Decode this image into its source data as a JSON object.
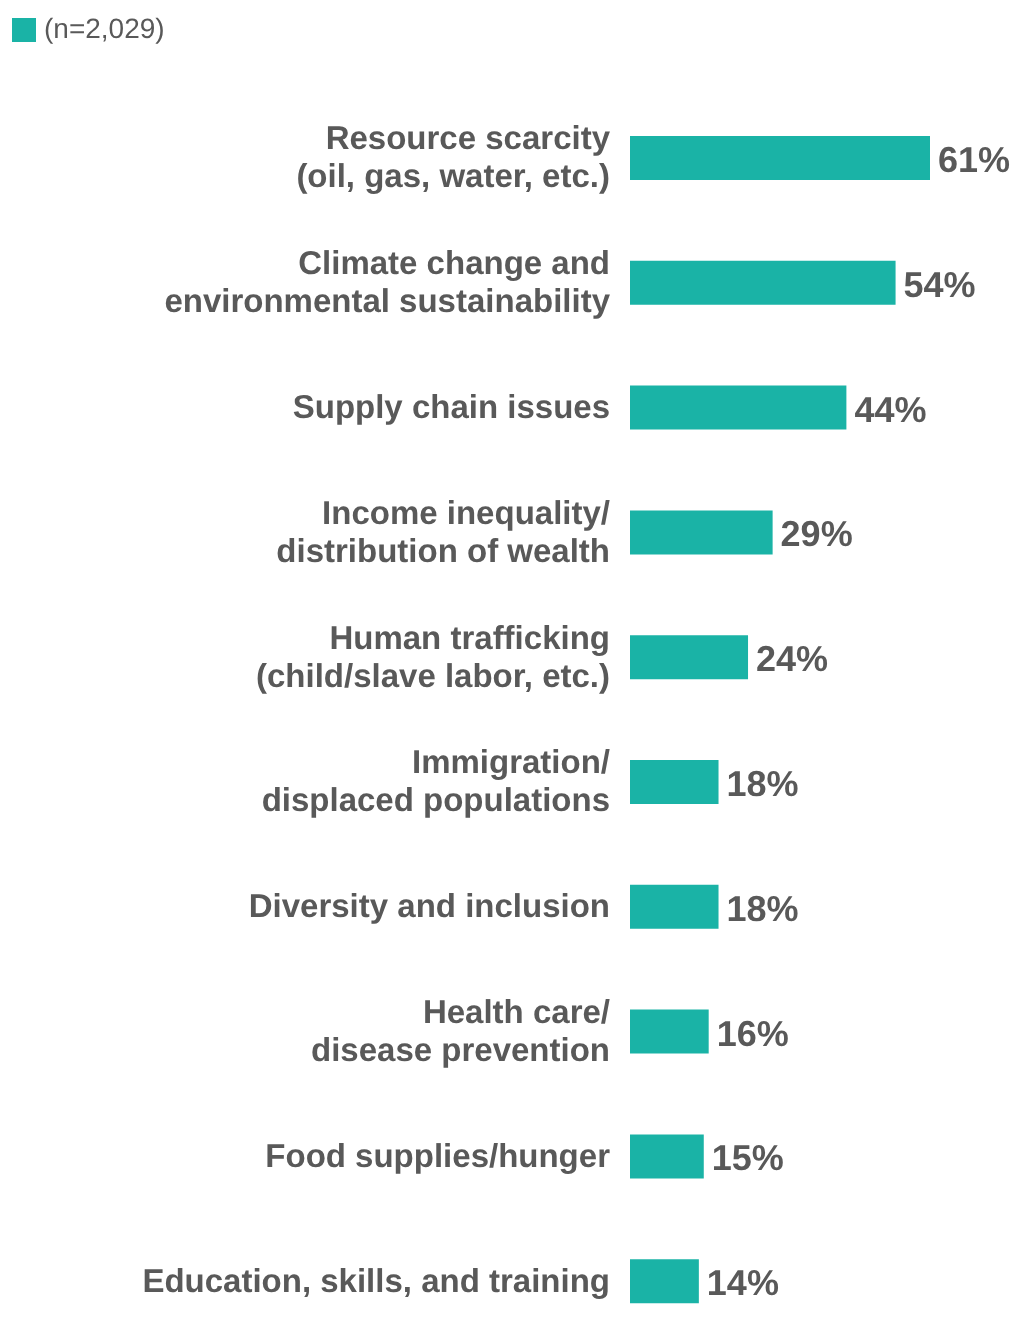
{
  "chart_data": {
    "type": "bar",
    "orientation": "horizontal",
    "legend": "top left",
    "categories": [
      "Resource scarcity\n(oil, gas, water, etc.)",
      "Climate change and\nenvironmental sustainability",
      "Supply chain issues",
      "Income inequality/\ndistribution of wealth",
      "Human trafficking\n(child/slave labor, etc.)",
      "Immigration/\ndisplaced populations",
      "Diversity and inclusion",
      "Health care/\ndisease prevention",
      "Food supplies/hunger",
      "Education, skills, and training"
    ],
    "series": [
      {
        "name": "(n=2,029)",
        "color": "#1ab3a6",
        "values": [
          61,
          54,
          44,
          29,
          24,
          18,
          18,
          16,
          15,
          14
        ],
        "value_labels": [
          "61%",
          "54%",
          "44%",
          "29%",
          "24%",
          "18%",
          "18%",
          "16%",
          "15%",
          "14%"
        ]
      }
    ]
  }
}
